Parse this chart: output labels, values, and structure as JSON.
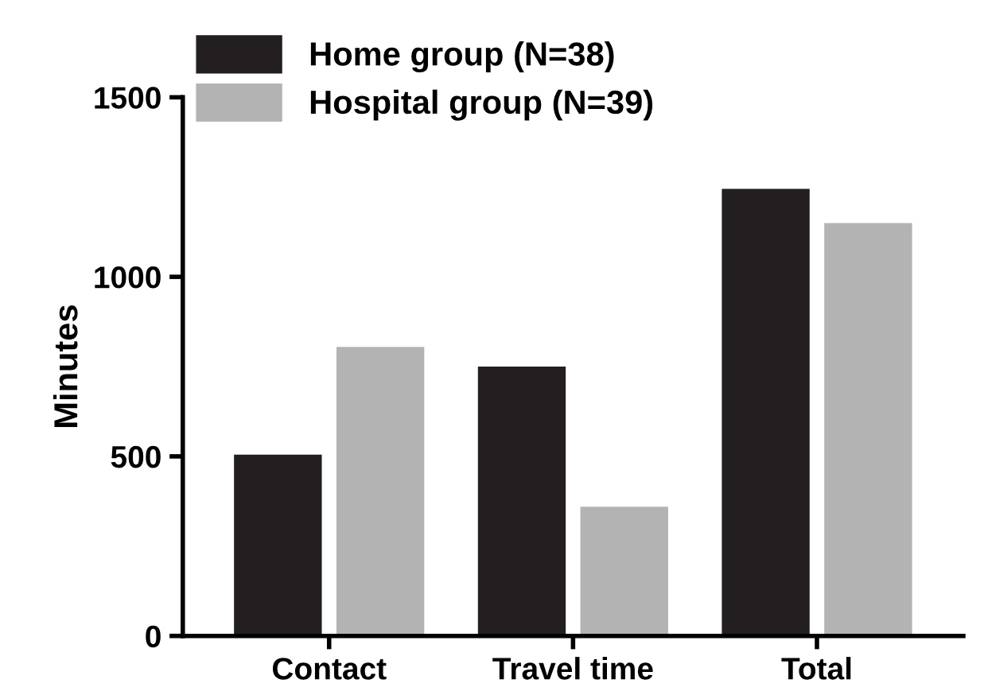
{
  "chart_data": {
    "type": "bar",
    "ylabel": "Minutes",
    "categories": [
      "Contact",
      "Travel time",
      "Total"
    ],
    "series": [
      {
        "name": "Home group (N=38)",
        "color": "#231f20",
        "values": [
          505,
          750,
          1245
        ]
      },
      {
        "name": "Hospital group (N=39)",
        "color": "#b3b3b3",
        "values": [
          805,
          360,
          1150
        ]
      }
    ],
    "ylim": [
      0,
      1500
    ],
    "yticks": [
      0,
      500,
      1000,
      1500
    ],
    "grid": false,
    "legend": "top left"
  }
}
